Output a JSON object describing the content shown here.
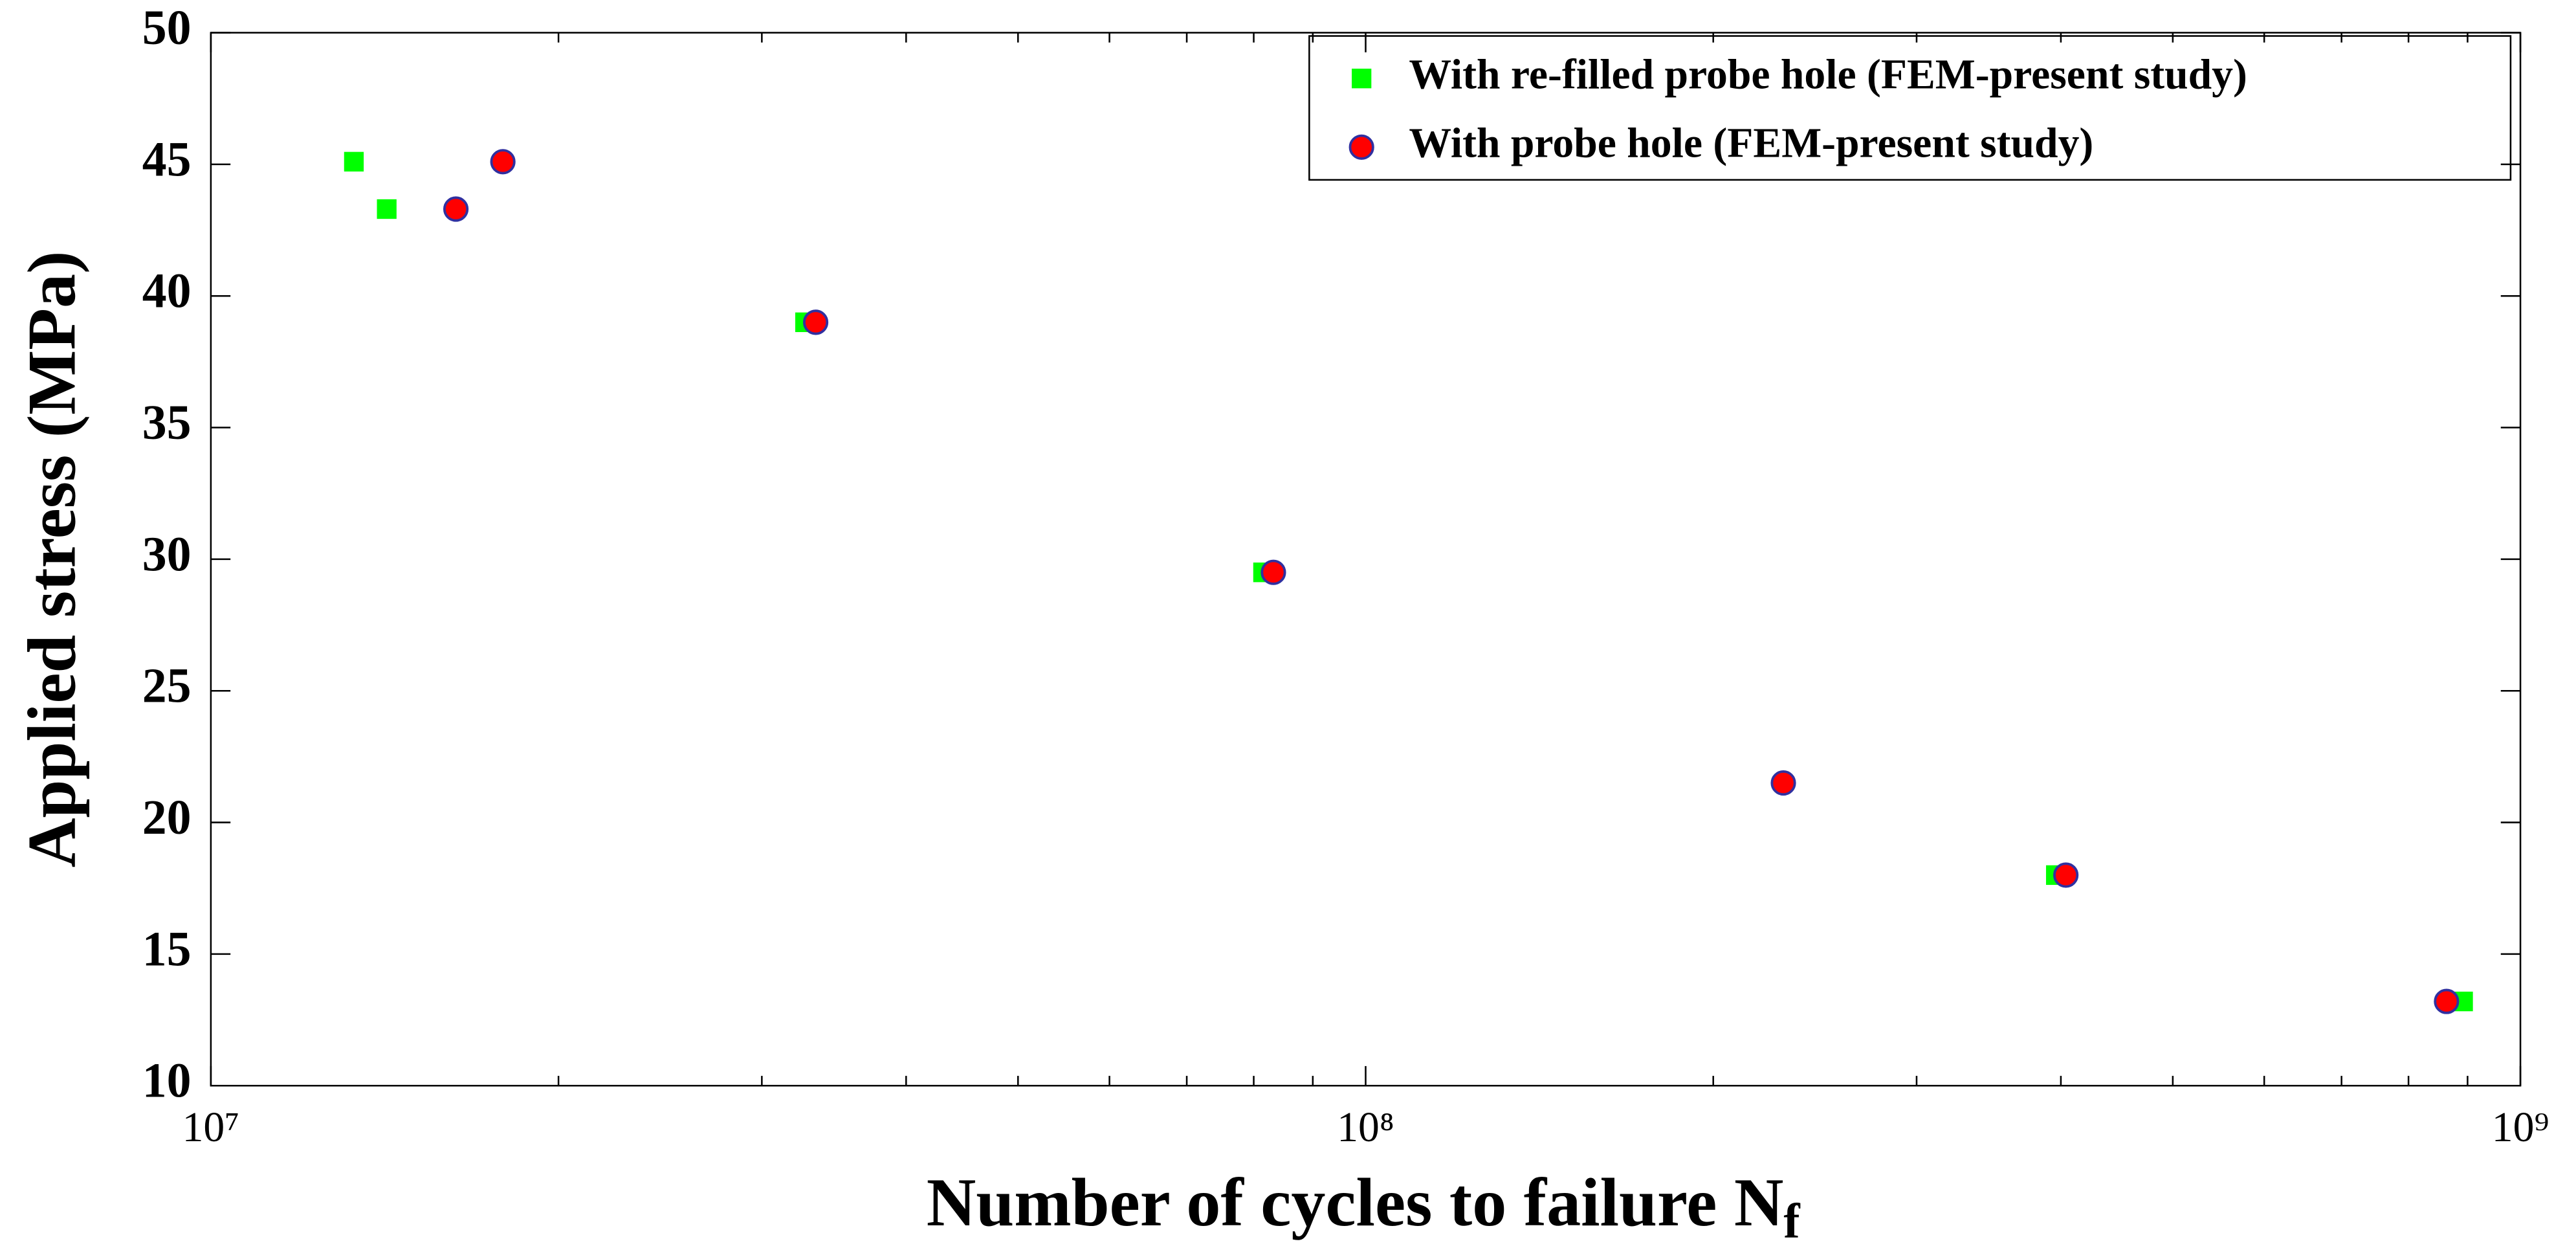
{
  "chart_data": {
    "type": "scatter",
    "x_label": "Number of cycles to failure N",
    "x_label_subscript": "f",
    "y_label": "Applied stress (MPa)",
    "log_x": true,
    "xlim": [
      10000000,
      1000000000
    ],
    "xticks": [
      {
        "value": 10000000,
        "label": "10⁷"
      },
      {
        "value": 100000000,
        "label": "10⁸"
      },
      {
        "value": 1000000000,
        "label": "10⁹"
      }
    ],
    "ylim": [
      10,
      50
    ],
    "yticks": [
      10,
      15,
      20,
      25,
      30,
      35,
      40,
      45,
      50
    ],
    "legend_position": "upper right",
    "series": [
      {
        "name": "With re-filled probe hole (FEM-present study)",
        "color": "#00ff00",
        "marker": "square",
        "x": [
          13300000,
          14200000,
          32700000,
          81500000,
          396000000,
          892000000
        ],
        "values": [
          45.1,
          43.3,
          39,
          29.5,
          18,
          13.2
        ]
      },
      {
        "name": "With probe hole (FEM-present study)",
        "color": "#ff0000",
        "edge_color": "#3030a0",
        "marker": "circle",
        "x": [
          16300000,
          17900000,
          33400000,
          83200000,
          230000000,
          404000000,
          863000000
        ],
        "values": [
          43.3,
          45.1,
          39,
          29.5,
          21.5,
          18,
          13.2
        ]
      }
    ]
  }
}
